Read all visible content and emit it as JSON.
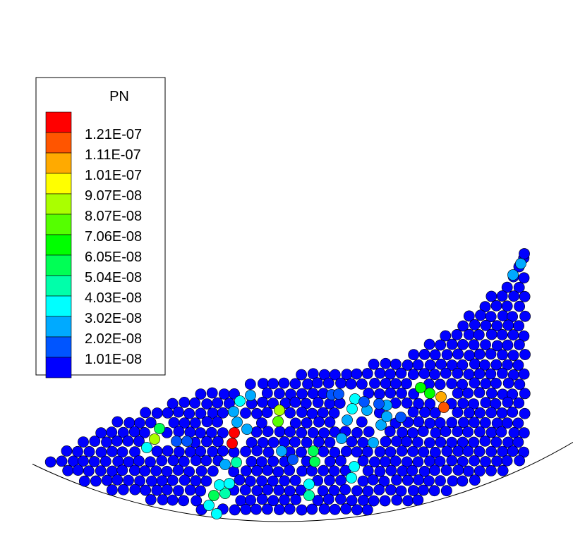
{
  "legend": {
    "title": "PN",
    "levels": [
      {
        "label": "",
        "color": "#ff0000"
      },
      {
        "label": "1.21E-07",
        "color": "#ff5500"
      },
      {
        "label": "1.11E-07",
        "color": "#ffaa00"
      },
      {
        "label": "1.01E-07",
        "color": "#ffff00"
      },
      {
        "label": "9.07E-08",
        "color": "#aaff00"
      },
      {
        "label": "8.07E-08",
        "color": "#55ff00"
      },
      {
        "label": "7.06E-08",
        "color": "#00ff00"
      },
      {
        "label": "6.05E-08",
        "color": "#00ff55"
      },
      {
        "label": "5.04E-08",
        "color": "#00ffaa"
      },
      {
        "label": "4.03E-08",
        "color": "#00ffff"
      },
      {
        "label": "3.02E-08",
        "color": "#00aaff"
      },
      {
        "label": "2.02E-08",
        "color": "#0055ff"
      },
      {
        "label": "1.01E-08",
        "color": "#0000ff"
      }
    ]
  },
  "chart_data": {
    "type": "scatter",
    "title": "",
    "variable": "PN",
    "description_of_field": "contour of particle normal force on granular particles",
    "color_scale": {
      "levels": [
        "1.01E-08",
        "2.02E-08",
        "3.02E-08",
        "4.03E-08",
        "5.04E-08",
        "6.05E-08",
        "7.06E-08",
        "8.07E-08",
        "9.07E-08",
        "1.01E-07",
        "1.11E-07",
        "1.21E-07"
      ]
    },
    "highlighted_particles": [
      {
        "value": "1.21E-07",
        "count": 2
      },
      {
        "value": "1.11E-07",
        "count": 1
      },
      {
        "value": "9.07E-08",
        "count": 2
      },
      {
        "value": "8.07E-08",
        "count": 1
      },
      {
        "value": "6.05E-08",
        "count": 6
      },
      {
        "value": "5.04E-08",
        "count": 3
      },
      {
        "value": "4.03E-08",
        "count": 10
      },
      {
        "value": "3.02E-08",
        "count": 20
      },
      {
        "value": "2.02E-08",
        "count": 8
      }
    ]
  }
}
